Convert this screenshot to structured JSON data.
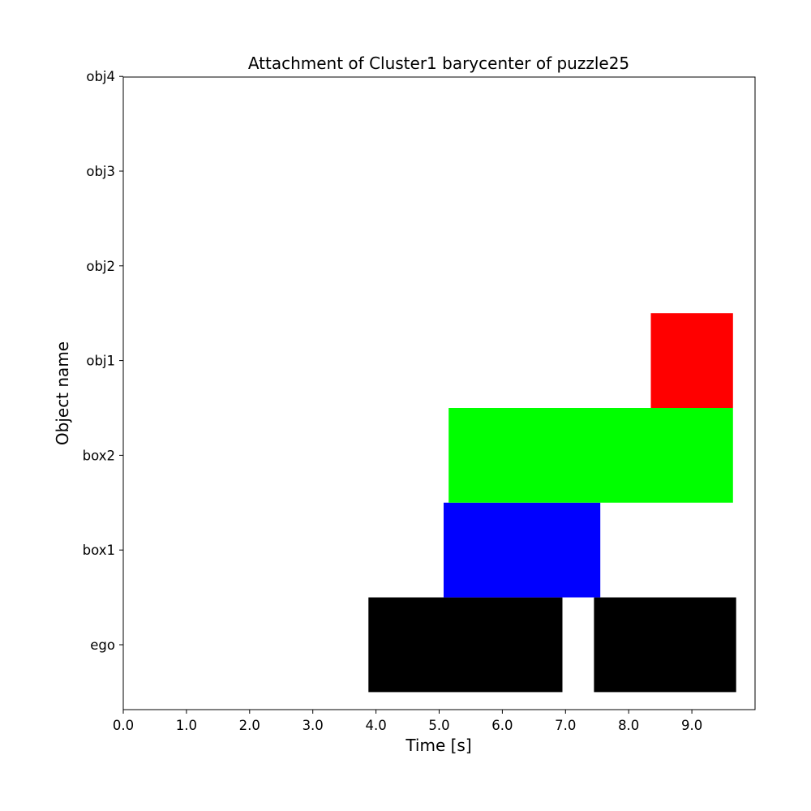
{
  "chart_data": {
    "type": "bar",
    "orientation": "horizontal-timeline",
    "title": "Attachment of Cluster1 barycenter of puzzle25",
    "xlabel": "Time [s]",
    "ylabel": "Object name",
    "xlim": [
      0.0,
      10.0
    ],
    "x_ticks": [
      "0.0",
      "1.0",
      "2.0",
      "3.0",
      "4.0",
      "5.0",
      "6.0",
      "7.0",
      "8.0",
      "9.0"
    ],
    "categories": [
      "ego",
      "box1",
      "box2",
      "obj1",
      "obj2",
      "obj3",
      "obj4"
    ],
    "grid": false,
    "legend": "none",
    "intervals": [
      {
        "object": "ego",
        "start": 3.88,
        "end": 6.95,
        "color": "#000000"
      },
      {
        "object": "ego",
        "start": 7.45,
        "end": 9.7,
        "color": "#000000"
      },
      {
        "object": "box1",
        "start": 5.07,
        "end": 7.55,
        "color": "#0000ff"
      },
      {
        "object": "box2",
        "start": 5.15,
        "end": 9.65,
        "color": "#00ff00"
      },
      {
        "object": "obj1",
        "start": 8.35,
        "end": 9.65,
        "color": "#ff0000"
      }
    ]
  }
}
